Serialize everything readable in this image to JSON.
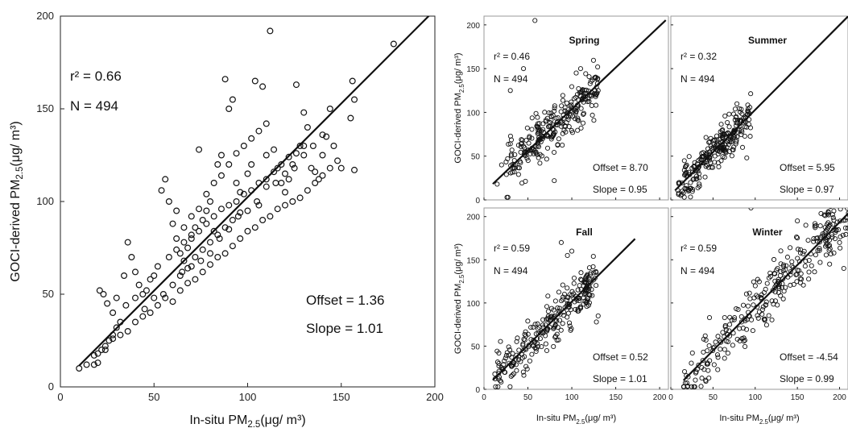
{
  "chart_data": [
    {
      "id": "all",
      "type": "scatter",
      "xlabel": {
        "pre": "In-situ PM",
        "sub": "2.5",
        "post": "(μg/ m³)"
      },
      "ylabel": {
        "pre": "GOCI-derived PM",
        "sub": "2.5",
        "post": "(μg/ m³)"
      },
      "xlim": [
        0,
        200
      ],
      "ylim": [
        0,
        200
      ],
      "xticks": [
        0,
        50,
        100,
        150,
        200
      ],
      "yticks": [
        0,
        50,
        100,
        150,
        200
      ],
      "r2": "r² = 0.66",
      "n": "N = 494",
      "offset_text": "Offset = 1.36",
      "slope_text": "Slope = 1.01",
      "fit": {
        "offset": 1.36,
        "slope": 1.01,
        "x_range": [
          10,
          197
        ]
      },
      "points": [
        [
          10,
          10
        ],
        [
          14,
          12
        ],
        [
          18,
          17
        ],
        [
          20,
          13
        ],
        [
          22,
          20
        ],
        [
          24,
          22
        ],
        [
          26,
          25
        ],
        [
          28,
          28
        ],
        [
          30,
          32
        ],
        [
          32,
          35
        ],
        [
          21,
          52
        ],
        [
          23,
          50
        ],
        [
          25,
          45
        ],
        [
          28,
          40
        ],
        [
          34,
          60
        ],
        [
          36,
          78
        ],
        [
          38,
          70
        ],
        [
          40,
          62
        ],
        [
          42,
          55
        ],
        [
          44,
          50
        ],
        [
          46,
          52
        ],
        [
          48,
          58
        ],
        [
          50,
          60
        ],
        [
          52,
          65
        ],
        [
          54,
          106
        ],
        [
          56,
          112
        ],
        [
          58,
          100
        ],
        [
          60,
          88
        ],
        [
          62,
          95
        ],
        [
          64,
          72
        ],
        [
          66,
          68
        ],
        [
          68,
          75
        ],
        [
          70,
          80
        ],
        [
          72,
          86
        ],
        [
          74,
          128
        ],
        [
          76,
          90
        ],
        [
          78,
          95
        ],
        [
          80,
          100
        ],
        [
          82,
          84
        ],
        [
          84,
          120
        ],
        [
          86,
          125
        ],
        [
          88,
          166
        ],
        [
          90,
          150
        ],
        [
          92,
          155
        ],
        [
          94,
          110
        ],
        [
          96,
          105
        ],
        [
          100,
          115
        ],
        [
          102,
          120
        ],
        [
          104,
          165
        ],
        [
          106,
          98
        ],
        [
          108,
          162
        ],
        [
          110,
          125
        ],
        [
          112,
          192
        ],
        [
          114,
          128
        ],
        [
          116,
          118
        ],
        [
          118,
          110
        ],
        [
          120,
          105
        ],
        [
          122,
          112
        ],
        [
          124,
          120
        ],
        [
          126,
          163
        ],
        [
          128,
          130
        ],
        [
          130,
          148
        ],
        [
          132,
          140
        ],
        [
          134,
          118
        ],
        [
          136,
          116
        ],
        [
          138,
          112
        ],
        [
          140,
          125
        ],
        [
          142,
          135
        ],
        [
          144,
          150
        ],
        [
          146,
          130
        ],
        [
          150,
          118
        ],
        [
          155,
          145
        ],
        [
          156,
          165
        ],
        [
          157,
          155
        ],
        [
          157,
          117
        ],
        [
          178,
          185
        ],
        [
          64,
          60
        ],
        [
          68,
          64
        ],
        [
          72,
          70
        ],
        [
          76,
          74
        ],
        [
          80,
          78
        ],
        [
          84,
          82
        ],
        [
          88,
          86
        ],
        [
          92,
          90
        ],
        [
          96,
          94
        ],
        [
          45,
          42
        ],
        [
          50,
          48
        ],
        [
          55,
          50
        ],
        [
          60,
          55
        ],
        [
          65,
          62
        ],
        [
          70,
          65
        ],
        [
          75,
          68
        ],
        [
          80,
          72
        ],
        [
          85,
          80
        ],
        [
          90,
          85
        ],
        [
          95,
          92
        ],
        [
          100,
          95
        ],
        [
          105,
          100
        ],
        [
          110,
          108
        ],
        [
          115,
          110
        ],
        [
          120,
          115
        ],
        [
          125,
          118
        ],
        [
          130,
          125
        ],
        [
          135,
          130
        ],
        [
          140,
          136
        ],
        [
          30,
          48
        ],
        [
          35,
          44
        ],
        [
          40,
          48
        ],
        [
          62,
          80
        ],
        [
          66,
          86
        ],
        [
          70,
          92
        ],
        [
          74,
          96
        ],
        [
          78,
          104
        ],
        [
          82,
          110
        ],
        [
          86,
          114
        ],
        [
          90,
          120
        ],
        [
          94,
          126
        ],
        [
          98,
          130
        ],
        [
          102,
          134
        ],
        [
          106,
          138
        ],
        [
          110,
          142
        ],
        [
          58,
          70
        ],
        [
          62,
          74
        ],
        [
          66,
          78
        ],
        [
          70,
          82
        ],
        [
          74,
          84
        ],
        [
          78,
          88
        ],
        [
          82,
          92
        ],
        [
          86,
          96
        ],
        [
          90,
          98
        ],
        [
          94,
          100
        ],
        [
          98,
          104
        ],
        [
          102,
          106
        ],
        [
          106,
          110
        ],
        [
          110,
          112
        ],
        [
          114,
          116
        ],
        [
          118,
          120
        ],
        [
          122,
          124
        ],
        [
          126,
          126
        ],
        [
          130,
          130
        ],
        [
          56,
          48
        ],
        [
          60,
          46
        ],
        [
          64,
          52
        ],
        [
          68,
          56
        ],
        [
          72,
          58
        ],
        [
          76,
          62
        ],
        [
          80,
          66
        ],
        [
          84,
          70
        ],
        [
          88,
          72
        ],
        [
          92,
          76
        ],
        [
          96,
          80
        ],
        [
          100,
          84
        ],
        [
          104,
          86
        ],
        [
          108,
          90
        ],
        [
          112,
          92
        ],
        [
          116,
          96
        ],
        [
          120,
          98
        ],
        [
          124,
          100
        ],
        [
          128,
          102
        ],
        [
          132,
          106
        ],
        [
          136,
          110
        ],
        [
          140,
          114
        ],
        [
          144,
          118
        ],
        [
          148,
          122
        ],
        [
          40,
          35
        ],
        [
          44,
          38
        ],
        [
          48,
          40
        ],
        [
          52,
          44
        ],
        [
          36,
          30
        ],
        [
          32,
          28
        ],
        [
          28,
          26
        ],
        [
          24,
          20
        ],
        [
          20,
          18
        ],
        [
          18,
          12
        ]
      ]
    },
    {
      "id": "spring",
      "type": "scatter",
      "title": "Spring",
      "xlim": [
        0,
        210
      ],
      "ylim": [
        0,
        210
      ],
      "xticks": [
        0,
        50,
        100,
        150,
        200
      ],
      "yticks": [
        0,
        50,
        100,
        150,
        200
      ],
      "ylabel": {
        "pre": "GOCI-derived PM",
        "sub": "2.5",
        "post": "(μg/ m³)"
      },
      "r2": "r² = 0.46",
      "n": "N = 494",
      "offset_text": "Offset = 8.70",
      "slope_text": "Slope = 0.95",
      "fit": {
        "offset": 8.7,
        "slope": 0.95,
        "x_range": [
          10,
          207
        ]
      },
      "cluster": {
        "cx": [
          25,
          130
        ],
        "spread": 22,
        "count": 260,
        "seed": 11
      },
      "extra_points": [
        [
          58,
          205
        ],
        [
          105,
          145
        ],
        [
          80,
          22
        ],
        [
          45,
          150
        ],
        [
          30,
          125
        ],
        [
          20,
          40
        ],
        [
          15,
          18
        ],
        [
          130,
          125
        ],
        [
          110,
          150
        ]
      ]
    },
    {
      "id": "summer",
      "type": "scatter",
      "title": "Summer",
      "xlim": [
        0,
        210
      ],
      "ylim": [
        0,
        210
      ],
      "xticks": [
        0,
        50,
        100,
        150,
        200
      ],
      "yticks": [
        0,
        50,
        100,
        150,
        200
      ],
      "r2": "r² = 0.32",
      "n": "N = 494",
      "offset_text": "Offset = 5.95",
      "slope_text": "Slope = 0.97",
      "fit": {
        "offset": 5.95,
        "slope": 0.97,
        "x_range": [
          5,
          210
        ]
      },
      "cluster": {
        "cx": [
          8,
          95
        ],
        "spread": 18,
        "count": 240,
        "seed": 23
      },
      "extra_points": [
        [
          12,
          5
        ],
        [
          15,
          8
        ],
        [
          20,
          12
        ],
        [
          90,
          48
        ],
        [
          85,
          60
        ]
      ]
    },
    {
      "id": "fall",
      "type": "scatter",
      "title": "Fall",
      "xlim": [
        0,
        210
      ],
      "ylim": [
        0,
        210
      ],
      "xticks": [
        0,
        50,
        100,
        150,
        200
      ],
      "yticks": [
        0,
        50,
        100,
        150,
        200
      ],
      "xlabel": {
        "pre": "In-situ PM",
        "sub": "2.5",
        "post": "(μg/ m³)"
      },
      "ylabel": {
        "pre": "GOCI-derived PM",
        "sub": "2.5",
        "post": "(μg/ m³)"
      },
      "r2": "r² = 0.59",
      "n": "N = 494",
      "offset_text": "Offset = 0.52",
      "slope_text": "Slope = 1.01",
      "fit": {
        "offset": 0.52,
        "slope": 1.01,
        "x_range": [
          10,
          172
        ]
      },
      "cluster": {
        "cx": [
          12,
          128
        ],
        "spread": 20,
        "count": 260,
        "seed": 37
      },
      "extra_points": [
        [
          88,
          170
        ],
        [
          95,
          155
        ],
        [
          100,
          160
        ],
        [
          125,
          135
        ],
        [
          130,
          85
        ],
        [
          128,
          78
        ]
      ]
    },
    {
      "id": "winter",
      "type": "scatter",
      "title": "Winter",
      "xlim": [
        0,
        210
      ],
      "ylim": [
        0,
        210
      ],
      "xticks": [
        0,
        50,
        100,
        150,
        200
      ],
      "yticks": [
        0,
        50,
        100,
        150,
        200
      ],
      "xlabel": {
        "pre": "In-situ PM",
        "sub": "2.5",
        "post": "(μg/ m³)"
      },
      "r2": "r² = 0.59",
      "n": "N = 494",
      "offset_text": "Offset = -4.54",
      "slope_text": "Slope = 0.99",
      "fit": {
        "offset": -4.54,
        "slope": 0.99,
        "x_range": [
          15,
          212
        ]
      },
      "cluster": {
        "cx": [
          15,
          212
        ],
        "spread": 26,
        "count": 300,
        "seed": 53
      },
      "extra_points": [
        [
          95,
          210
        ],
        [
          150,
          195
        ],
        [
          160,
          190
        ],
        [
          180,
          180
        ],
        [
          200,
          170
        ],
        [
          205,
          140
        ]
      ]
    }
  ]
}
